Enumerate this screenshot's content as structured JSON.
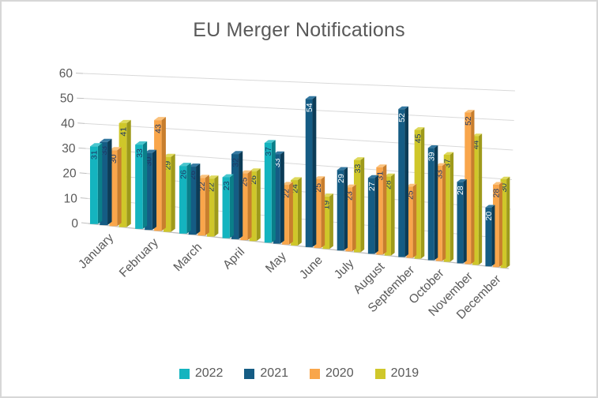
{
  "title": "EU Merger Notifications",
  "chart_data": {
    "type": "bar",
    "subtype": "3d-column",
    "title": "EU Merger Notifications",
    "xlabel": "",
    "ylabel": "",
    "ylim": [
      0,
      60
    ],
    "yticks": [
      0,
      10,
      20,
      30,
      40,
      50,
      60
    ],
    "grid": true,
    "legend_position": "bottom",
    "categories": [
      "January",
      "February",
      "March",
      "April",
      "May",
      "June",
      "July",
      "August",
      "September",
      "October",
      "November",
      "December"
    ],
    "series": [
      {
        "name": "2022",
        "color": "#14b4bf",
        "color_top": "#49c6ce",
        "color_side": "#0a7f89",
        "values": [
          31,
          33,
          26,
          23,
          37,
          null,
          null,
          null,
          null,
          null,
          null,
          null
        ]
      },
      {
        "name": "2021",
        "color": "#155c84",
        "color_top": "#3579a1",
        "color_side": "#0c3c57",
        "values": [
          33,
          30,
          26,
          32,
          33,
          54,
          29,
          27,
          52,
          39,
          28,
          20
        ]
      },
      {
        "name": "2020",
        "color": "#f9a64b",
        "color_top": "#fbc27c",
        "color_side": "#c87e2d",
        "values": [
          30,
          43,
          22,
          25,
          22,
          25,
          23,
          31,
          25,
          33,
          52,
          28
        ]
      },
      {
        "name": "2019",
        "color": "#cfc72a",
        "color_top": "#ded95c",
        "color_side": "#9e9a1b",
        "values": [
          41,
          29,
          22,
          26,
          24,
          19,
          33,
          28,
          45,
          37,
          44,
          30
        ]
      }
    ],
    "colors": {
      "data_label": "#1f3864",
      "data_label_on_dark": "#ffffff",
      "axis_text": "#595959",
      "title_text": "#595959",
      "gridline": "#d9d9d9",
      "baseline": "#bfbfbf",
      "background": "#ffffff",
      "border": "#d7d7d7"
    }
  }
}
